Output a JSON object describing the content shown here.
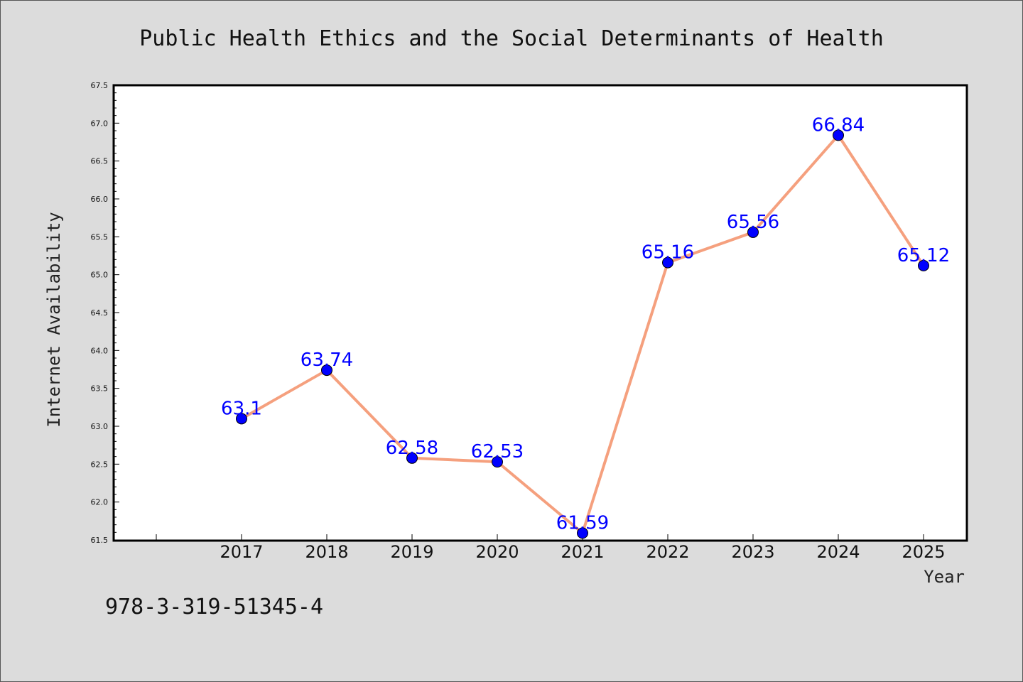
{
  "chart_data": {
    "type": "line",
    "title": "Public Health Ethics and the Social Determinants of Health",
    "xlabel": "Year",
    "ylabel": "Internet Availability",
    "categories": [
      "2017",
      "2018",
      "2019",
      "2020",
      "2021",
      "2022",
      "2023",
      "2024",
      "2025"
    ],
    "series": [
      {
        "values": [
          63.1,
          63.74,
          62.58,
          62.53,
          61.59,
          65.16,
          65.56,
          66.84,
          65.12
        ],
        "labels": [
          "63.1",
          "63.74",
          "62.58",
          "62.53",
          "61.59",
          "65.16",
          "65.56",
          "66.84",
          "65.12"
        ],
        "line_color": "#f5a07e",
        "marker_color": "#0000ff"
      }
    ],
    "ylim": [
      61.5,
      67.5
    ],
    "yticks": [
      "61.5",
      "62.0",
      "62.5",
      "63.0",
      "63.5",
      "64.0",
      "64.5",
      "65.0",
      "65.5",
      "66.0",
      "66.5",
      "67.0",
      "67.5"
    ],
    "grid": false,
    "legend": "none"
  },
  "footer": {
    "isbn": "978-3-319-51345-4"
  },
  "colors": {
    "background": "#dcdcdc",
    "plot_background": "#ffffff",
    "line": "#f5a07e",
    "marker": "#0000ff",
    "data_label": "#0000ff"
  }
}
